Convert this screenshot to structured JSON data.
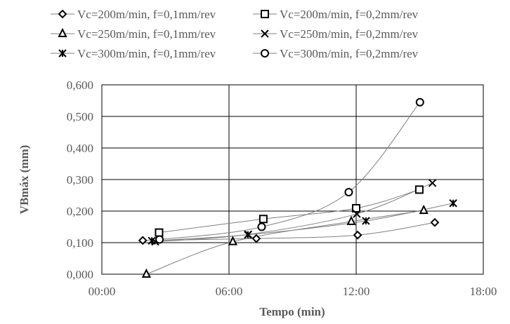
{
  "chart_data": {
    "type": "line",
    "title": "",
    "xlabel": "Tempo (min)",
    "ylabel": "VBmáx (mm)",
    "xlim": [
      0,
      18
    ],
    "ylim": [
      0,
      0.6
    ],
    "x_ticks": [
      "00:00",
      "06:00",
      "12:00",
      "18:00"
    ],
    "y_ticks": [
      "0,000",
      "0,100",
      "0,200",
      "0,300",
      "0,400",
      "0,500",
      "0,600"
    ],
    "grid": true,
    "legend_position": "top",
    "line_color": "#808080",
    "marker_color": "#000000",
    "series": [
      {
        "name": "Vc=200m/min, f=0,1mm/rev",
        "marker": "diamond",
        "x": [
          1.93,
          7.29,
          12.07,
          15.71
        ],
        "y": [
          0.107,
          0.113,
          0.124,
          0.164
        ]
      },
      {
        "name": "Vc=200m/min, f=0,2mm/rev",
        "marker": "square",
        "x": [
          2.7,
          7.62,
          12.0,
          14.98
        ],
        "y": [
          0.132,
          0.175,
          0.209,
          0.268
        ]
      },
      {
        "name": "Vc=250m/min, f=0,1mm/rev",
        "marker": "triangle",
        "x": [
          2.1,
          6.18,
          11.77,
          15.19
        ],
        "y": [
          0.0,
          0.103,
          0.167,
          0.202
        ]
      },
      {
        "name": "Vc=250m/min, f=0,2mm/rev",
        "marker": "x",
        "x": [
          2.52,
          6.91,
          12.03,
          15.6
        ],
        "y": [
          0.103,
          0.126,
          0.191,
          0.289
        ]
      },
      {
        "name": "Vc=300m/min, f=0,1mm/rev",
        "marker": "star",
        "x": [
          2.36,
          6.89,
          12.46,
          16.58
        ],
        "y": [
          0.106,
          0.125,
          0.169,
          0.225
        ]
      },
      {
        "name": "Vc=300m/min, f=0,2mm/rev",
        "marker": "circle",
        "x": [
          2.72,
          7.54,
          11.65,
          15.01
        ],
        "y": [
          0.11,
          0.15,
          0.26,
          0.545
        ]
      }
    ]
  }
}
